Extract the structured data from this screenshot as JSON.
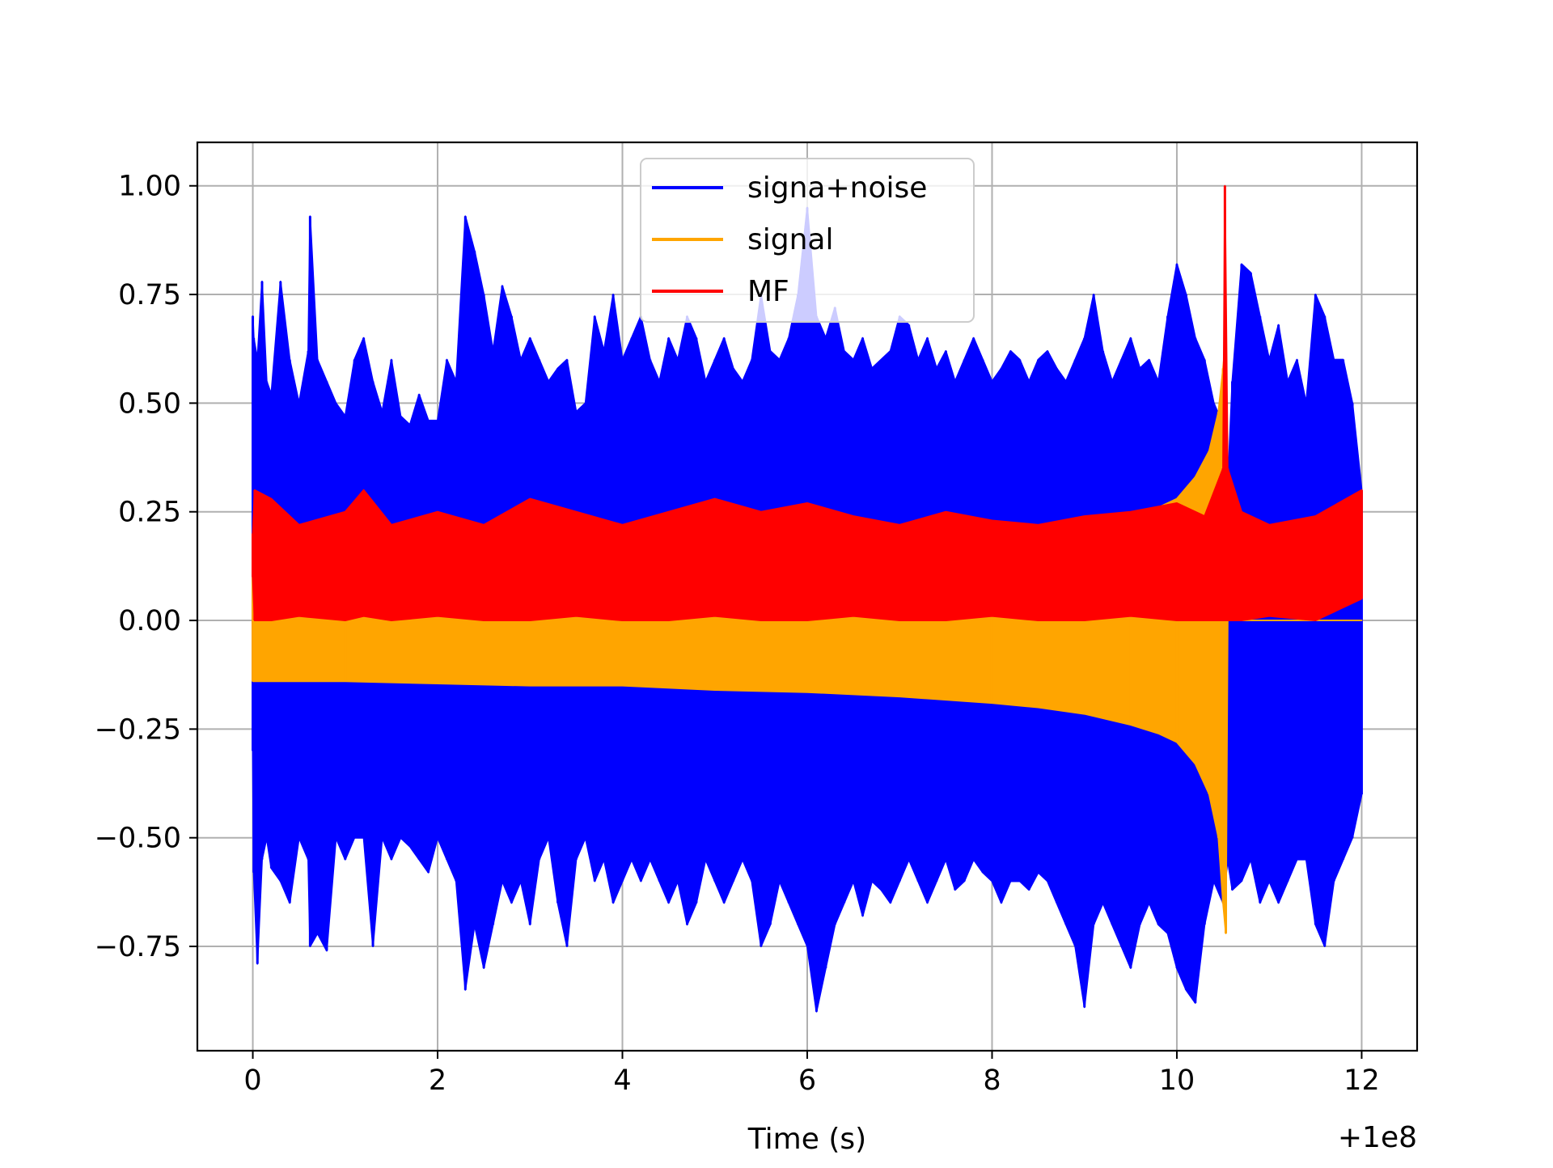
{
  "chart_data": {
    "type": "line",
    "title": "",
    "xlabel": "Time (s)",
    "ylabel": "",
    "x_offset_label": "+1e8",
    "xlim": [
      -0.6,
      12.6
    ],
    "ylim": [
      -0.99,
      1.1
    ],
    "x_ticks": [
      0,
      2,
      4,
      6,
      8,
      10,
      12
    ],
    "x_tick_labels": [
      "0",
      "2",
      "4",
      "6",
      "8",
      "10",
      "12"
    ],
    "y_ticks": [
      1.0,
      0.75,
      0.5,
      0.25,
      0.0,
      -0.25,
      -0.5,
      -0.75
    ],
    "y_tick_labels": [
      "1.00",
      "0.75",
      "0.50",
      "0.25",
      "0.00",
      "−0.25",
      "−0.50",
      "−0.75"
    ],
    "grid": true,
    "legend_position": "top-center",
    "series": [
      {
        "name": "signa+noise",
        "color": "#0000ff",
        "x": [
          0.0,
          0.01,
          0.05,
          0.1,
          0.15,
          0.2,
          0.3,
          0.4,
          0.5,
          0.6,
          0.62,
          0.7,
          0.8,
          0.9,
          1.0,
          1.1,
          1.2,
          1.3,
          1.4,
          1.5,
          1.6,
          1.7,
          1.8,
          1.9,
          2.0,
          2.1,
          2.2,
          2.3,
          2.4,
          2.5,
          2.6,
          2.7,
          2.8,
          2.9,
          3.0,
          3.1,
          3.2,
          3.3,
          3.4,
          3.5,
          3.6,
          3.7,
          3.8,
          3.9,
          4.0,
          4.1,
          4.2,
          4.3,
          4.4,
          4.5,
          4.6,
          4.7,
          4.8,
          4.9,
          5.0,
          5.1,
          5.2,
          5.3,
          5.4,
          5.5,
          5.6,
          5.7,
          5.8,
          5.9,
          6.0,
          6.1,
          6.2,
          6.3,
          6.4,
          6.5,
          6.6,
          6.7,
          6.8,
          6.9,
          7.0,
          7.1,
          7.2,
          7.3,
          7.4,
          7.5,
          7.6,
          7.7,
          7.8,
          7.9,
          8.0,
          8.1,
          8.2,
          8.3,
          8.4,
          8.5,
          8.6,
          8.7,
          8.8,
          8.9,
          9.0,
          9.1,
          9.2,
          9.3,
          9.4,
          9.5,
          9.6,
          9.7,
          9.8,
          9.9,
          10.0,
          10.1,
          10.2,
          10.3,
          10.4,
          10.5,
          10.55,
          10.6,
          10.7,
          10.8,
          10.9,
          11.0,
          11.1,
          11.2,
          11.3,
          11.4,
          11.5,
          11.6,
          11.7,
          11.8,
          11.9,
          12.0
        ],
        "y_max": [
          0.7,
          0.65,
          0.6,
          0.78,
          0.55,
          0.52,
          0.78,
          0.6,
          0.5,
          0.62,
          0.93,
          0.6,
          0.55,
          0.5,
          0.47,
          0.6,
          0.65,
          0.55,
          0.48,
          0.6,
          0.47,
          0.45,
          0.52,
          0.46,
          0.46,
          0.6,
          0.55,
          0.93,
          0.85,
          0.75,
          0.62,
          0.77,
          0.7,
          0.6,
          0.65,
          0.6,
          0.55,
          0.58,
          0.6,
          0.48,
          0.5,
          0.7,
          0.62,
          0.75,
          0.6,
          0.65,
          0.7,
          0.6,
          0.55,
          0.65,
          0.6,
          0.7,
          0.65,
          0.55,
          0.6,
          0.65,
          0.58,
          0.55,
          0.6,
          0.75,
          0.62,
          0.6,
          0.65,
          0.75,
          0.95,
          0.7,
          0.65,
          0.72,
          0.62,
          0.6,
          0.65,
          0.58,
          0.6,
          0.62,
          0.7,
          0.68,
          0.6,
          0.65,
          0.58,
          0.62,
          0.55,
          0.6,
          0.65,
          0.6,
          0.55,
          0.58,
          0.62,
          0.6,
          0.55,
          0.6,
          0.62,
          0.58,
          0.55,
          0.6,
          0.65,
          0.75,
          0.62,
          0.55,
          0.6,
          0.65,
          0.58,
          0.6,
          0.55,
          0.7,
          0.82,
          0.75,
          0.65,
          0.6,
          0.5,
          0.45,
          0.3,
          0.55,
          0.82,
          0.8,
          0.7,
          0.6,
          0.68,
          0.55,
          0.6,
          0.5,
          0.75,
          0.7,
          0.6,
          0.6,
          0.5,
          0.3
        ],
        "y_min": [
          -0.3,
          -0.58,
          -0.79,
          -0.55,
          -0.5,
          -0.57,
          -0.6,
          -0.65,
          -0.5,
          -0.55,
          -0.75,
          -0.72,
          -0.76,
          -0.5,
          -0.55,
          -0.5,
          -0.5,
          -0.75,
          -0.5,
          -0.55,
          -0.5,
          -0.52,
          -0.55,
          -0.58,
          -0.5,
          -0.55,
          -0.6,
          -0.85,
          -0.7,
          -0.8,
          -0.7,
          -0.6,
          -0.65,
          -0.6,
          -0.7,
          -0.55,
          -0.5,
          -0.65,
          -0.75,
          -0.55,
          -0.5,
          -0.6,
          -0.55,
          -0.65,
          -0.6,
          -0.55,
          -0.6,
          -0.55,
          -0.6,
          -0.65,
          -0.6,
          -0.7,
          -0.65,
          -0.55,
          -0.6,
          -0.65,
          -0.6,
          -0.55,
          -0.6,
          -0.75,
          -0.7,
          -0.6,
          -0.65,
          -0.7,
          -0.75,
          -0.9,
          -0.8,
          -0.7,
          -0.65,
          -0.6,
          -0.68,
          -0.6,
          -0.62,
          -0.65,
          -0.6,
          -0.55,
          -0.6,
          -0.65,
          -0.6,
          -0.55,
          -0.62,
          -0.6,
          -0.55,
          -0.58,
          -0.6,
          -0.65,
          -0.6,
          -0.6,
          -0.62,
          -0.58,
          -0.6,
          -0.65,
          -0.7,
          -0.75,
          -0.89,
          -0.7,
          -0.65,
          -0.7,
          -0.75,
          -0.8,
          -0.7,
          -0.65,
          -0.7,
          -0.72,
          -0.8,
          -0.85,
          -0.88,
          -0.7,
          -0.6,
          -0.65,
          -0.55,
          -0.62,
          -0.6,
          -0.55,
          -0.65,
          -0.6,
          -0.65,
          -0.6,
          -0.55,
          -0.55,
          -0.7,
          -0.75,
          -0.6,
          -0.55,
          -0.5,
          -0.4
        ]
      },
      {
        "name": "signal",
        "color": "#ffa500",
        "x": [
          0.0,
          1.0,
          2.0,
          3.0,
          4.0,
          5.0,
          6.0,
          7.0,
          8.0,
          8.5,
          9.0,
          9.5,
          9.8,
          10.0,
          10.2,
          10.35,
          10.45,
          10.5,
          10.53,
          10.55,
          10.6,
          12.0
        ],
        "y_max": [
          0.14,
          0.14,
          0.145,
          0.15,
          0.15,
          0.16,
          0.165,
          0.175,
          0.19,
          0.2,
          0.215,
          0.24,
          0.26,
          0.28,
          0.33,
          0.39,
          0.48,
          0.58,
          0.65,
          0.0,
          0.0,
          0.0
        ],
        "y_min": [
          -0.14,
          -0.14,
          -0.145,
          -0.15,
          -0.15,
          -0.16,
          -0.165,
          -0.175,
          -0.19,
          -0.2,
          -0.215,
          -0.24,
          -0.26,
          -0.28,
          -0.33,
          -0.4,
          -0.5,
          -0.65,
          -0.72,
          0.0,
          0.0,
          0.0
        ]
      },
      {
        "name": "MF",
        "color": "#ff0000",
        "x": [
          0.0,
          0.02,
          0.2,
          0.5,
          1.0,
          1.2,
          1.5,
          2.0,
          2.5,
          3.0,
          3.5,
          4.0,
          4.5,
          5.0,
          5.5,
          6.0,
          6.5,
          7.0,
          7.5,
          8.0,
          8.5,
          9.0,
          9.5,
          10.0,
          10.3,
          10.5,
          10.52,
          10.55,
          10.7,
          11.0,
          11.5,
          12.0
        ],
        "y_max": [
          0.2,
          0.3,
          0.28,
          0.22,
          0.25,
          0.3,
          0.22,
          0.25,
          0.22,
          0.28,
          0.25,
          0.22,
          0.25,
          0.28,
          0.25,
          0.27,
          0.24,
          0.22,
          0.25,
          0.23,
          0.22,
          0.24,
          0.25,
          0.27,
          0.24,
          0.35,
          1.0,
          0.35,
          0.25,
          0.22,
          0.24,
          0.3
        ],
        "y_min": [
          0.1,
          0.0,
          0.0,
          0.01,
          0.0,
          0.01,
          0.0,
          0.01,
          0.0,
          0.0,
          0.01,
          0.0,
          0.0,
          0.01,
          0.0,
          0.0,
          0.01,
          0.0,
          0.0,
          0.01,
          0.0,
          0.0,
          0.01,
          0.0,
          0.0,
          0.0,
          0.0,
          0.0,
          0.0,
          0.01,
          0.0,
          0.05
        ]
      }
    ]
  }
}
